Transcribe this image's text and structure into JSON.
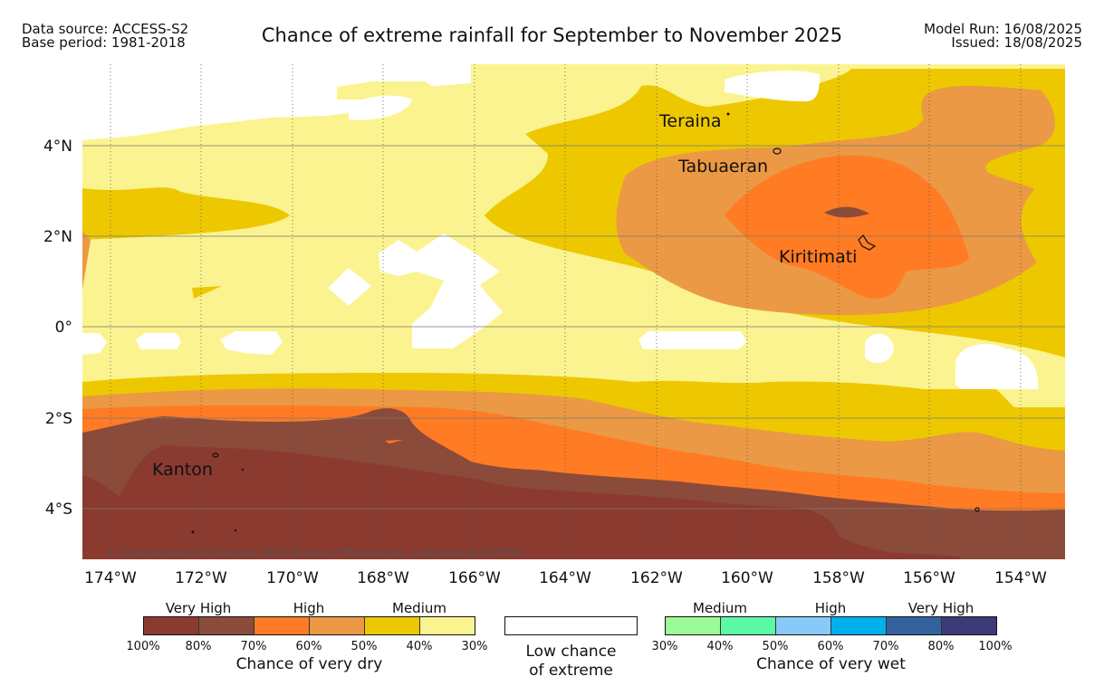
{
  "header": {
    "data_source": "Data source: ACCESS-S2",
    "base_period": "Base period: 1981-2018",
    "title": "Chance of extreme rainfall for September to November 2025",
    "model_run": "Model Run: 16/08/2025",
    "issued": "Issued: 18/08/2025"
  },
  "map": {
    "lat_ticks": [
      "4°N",
      "2°N",
      "0°",
      "2°S",
      "4°S"
    ],
    "lon_ticks": [
      "174°W",
      "172°W",
      "170°W",
      "168°W",
      "166°W",
      "164°W",
      "162°W",
      "160°W",
      "158°W",
      "156°W",
      "154°W"
    ],
    "places": [
      "Teraina",
      "Tabuaeran",
      "Kiritimati",
      "Kanton"
    ],
    "copyright": "© Commonwealth of Australia 2025, Bureau of Meteorology, supported by COSPPac",
    "colors": {
      "dry_100_80": "#8b3a30",
      "dry_80_70": "#8b4b3a",
      "dry_70_60": "#ff7b24",
      "dry_60_50": "#eb9944",
      "dry_50_40": "#edc800",
      "dry_40_30": "#fbf38f",
      "low": "#ffffff"
    }
  },
  "legend": {
    "dry": {
      "groups": [
        "Very High",
        "High",
        "Medium"
      ],
      "colors": [
        "#8b3a30",
        "#8b4b3a",
        "#ff7b24",
        "#eb9944",
        "#edc800",
        "#fbf38f"
      ],
      "ticks": [
        "100%",
        "80%",
        "70%",
        "60%",
        "50%",
        "40%",
        "30%"
      ],
      "caption": "Chance of very dry"
    },
    "low": {
      "caption_line1": "Low chance",
      "caption_line2": "of extreme"
    },
    "wet": {
      "groups": [
        "Medium",
        "High",
        "Very High"
      ],
      "colors": [
        "#9bfb97",
        "#5bf9a5",
        "#87caf9",
        "#00b0ec",
        "#34629f",
        "#3e3a78"
      ],
      "ticks": [
        "30%",
        "40%",
        "50%",
        "60%",
        "70%",
        "80%",
        "100%"
      ],
      "caption": "Chance of very wet"
    }
  }
}
